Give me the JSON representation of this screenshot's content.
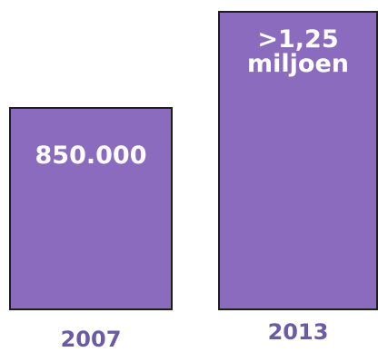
{
  "colors": {
    "bar_fill": "#8a6bbd",
    "bar_border": "#1e1e1e",
    "year_text": "#6b5aa6",
    "label_text": "#ffffff"
  },
  "chart_data": {
    "type": "bar",
    "categories": [
      "2007",
      "2013"
    ],
    "values": [
      850000,
      1250000
    ],
    "data_labels": [
      [
        "850.000"
      ],
      [
        ">1,25",
        "miljoen"
      ]
    ],
    "title": "",
    "xlabel": "",
    "ylabel": ""
  }
}
